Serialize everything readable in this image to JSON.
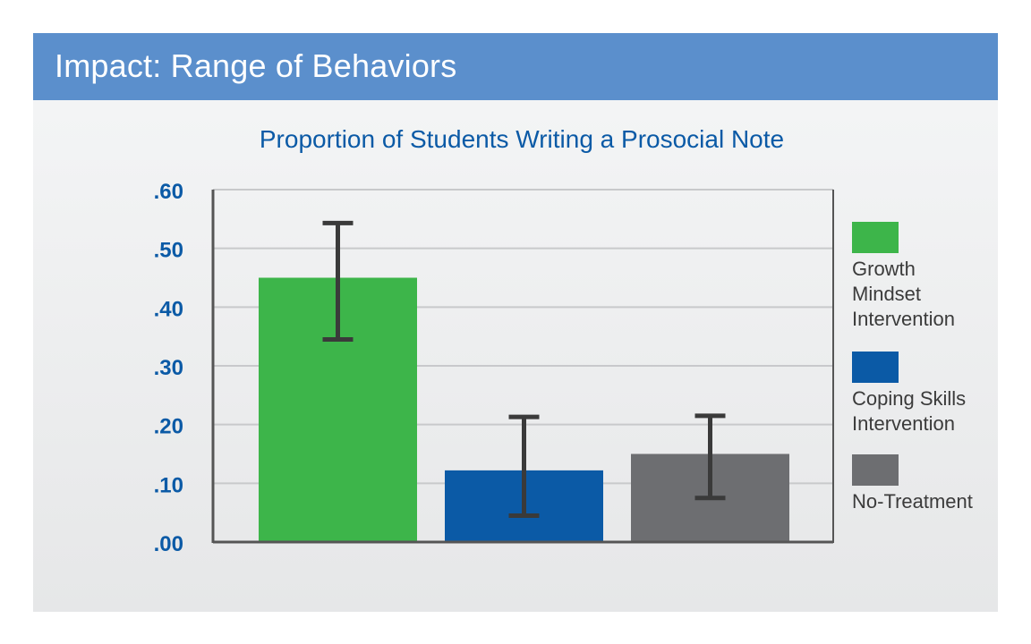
{
  "header": {
    "title": "Impact: Range of Behaviors"
  },
  "chart_data": {
    "type": "bar",
    "title": "Proportion of Students Writing a Prosocial Note",
    "xlabel": "",
    "ylabel": "",
    "ylim": [
      0,
      0.6
    ],
    "yticks": [
      0,
      0.1,
      0.2,
      0.3,
      0.4,
      0.5,
      0.6
    ],
    "ytick_labels": [
      ".00",
      ".10",
      ".20",
      ".30",
      ".40",
      ".50",
      ".60"
    ],
    "grid": true,
    "legend_position": "right",
    "series": [
      {
        "name": "Growth Mindset Intervention",
        "value": 0.45,
        "error_low": 0.345,
        "error_high": 0.543,
        "color": "#3db54a"
      },
      {
        "name": "Coping Skills Intervention",
        "value": 0.122,
        "error_low": 0.045,
        "error_high": 0.213,
        "color": "#0b5aa6"
      },
      {
        "name": "No-Treatment",
        "value": 0.15,
        "error_low": 0.075,
        "error_high": 0.215,
        "color": "#6d6e71"
      }
    ],
    "legend_lines": [
      [
        "Growth",
        "Mindset",
        "Intervention"
      ],
      [
        "Coping Skills",
        "Intervention"
      ],
      [
        "No-Treatment"
      ]
    ]
  },
  "colors": {
    "header_bg": "#5b8fcc",
    "title_text": "#0b5aa6",
    "axis": "#555555",
    "grid": "#c8c9cb",
    "error_bar": "#3a3a3a"
  }
}
